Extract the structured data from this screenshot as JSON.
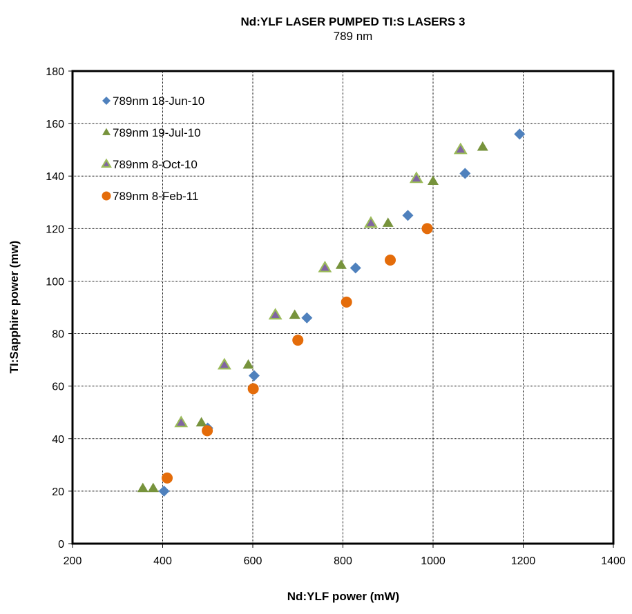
{
  "chart_data": {
    "type": "scatter",
    "title": "Nd:YLF LASER PUMPED TI:S LASERS 3",
    "subtitle": "789 nm",
    "xlabel": "Nd:YLF power (mW)",
    "ylabel": "TI:Sapphire power (mw)",
    "xlim": [
      200,
      1400
    ],
    "ylim": [
      0,
      180
    ],
    "x_ticks": [
      "200",
      "400",
      "600",
      "800",
      "1000",
      "1200",
      "1400"
    ],
    "y_ticks": [
      "0",
      "20",
      "40",
      "60",
      "80",
      "100",
      "120",
      "140",
      "160",
      "180"
    ],
    "grid": true,
    "legend_position": "top-left",
    "series": [
      {
        "name": "789nm 18-Jun-10",
        "marker": "diamond",
        "color": "#4F81BD",
        "x": [
          403,
          500,
          603,
          720,
          828,
          944,
          1071,
          1192
        ],
        "y": [
          20,
          44,
          64,
          86,
          105,
          125,
          141,
          156
        ]
      },
      {
        "name": "789nm 19-Jul-10",
        "marker": "triangle",
        "color": "#77933C",
        "x": [
          356,
          379,
          486,
          590,
          693,
          796,
          900,
          1000,
          1110
        ],
        "y": [
          21,
          21,
          46,
          68,
          87,
          106,
          122,
          138,
          151
        ]
      },
      {
        "name": "789nm 8-Oct-10",
        "marker": "triangle",
        "color": "#8064A2",
        "stroke": "#9BBB59",
        "x": [
          441,
          537,
          650,
          760,
          862,
          963,
          1061
        ],
        "y": [
          46,
          68,
          87,
          105,
          122,
          139,
          150
        ]
      },
      {
        "name": "789nm 8-Feb-11",
        "marker": "circle",
        "color": "#E46C0A",
        "x": [
          410,
          499,
          601,
          700,
          808,
          905,
          987
        ],
        "y": [
          25,
          43,
          59,
          77.5,
          92,
          108,
          120
        ]
      }
    ]
  }
}
